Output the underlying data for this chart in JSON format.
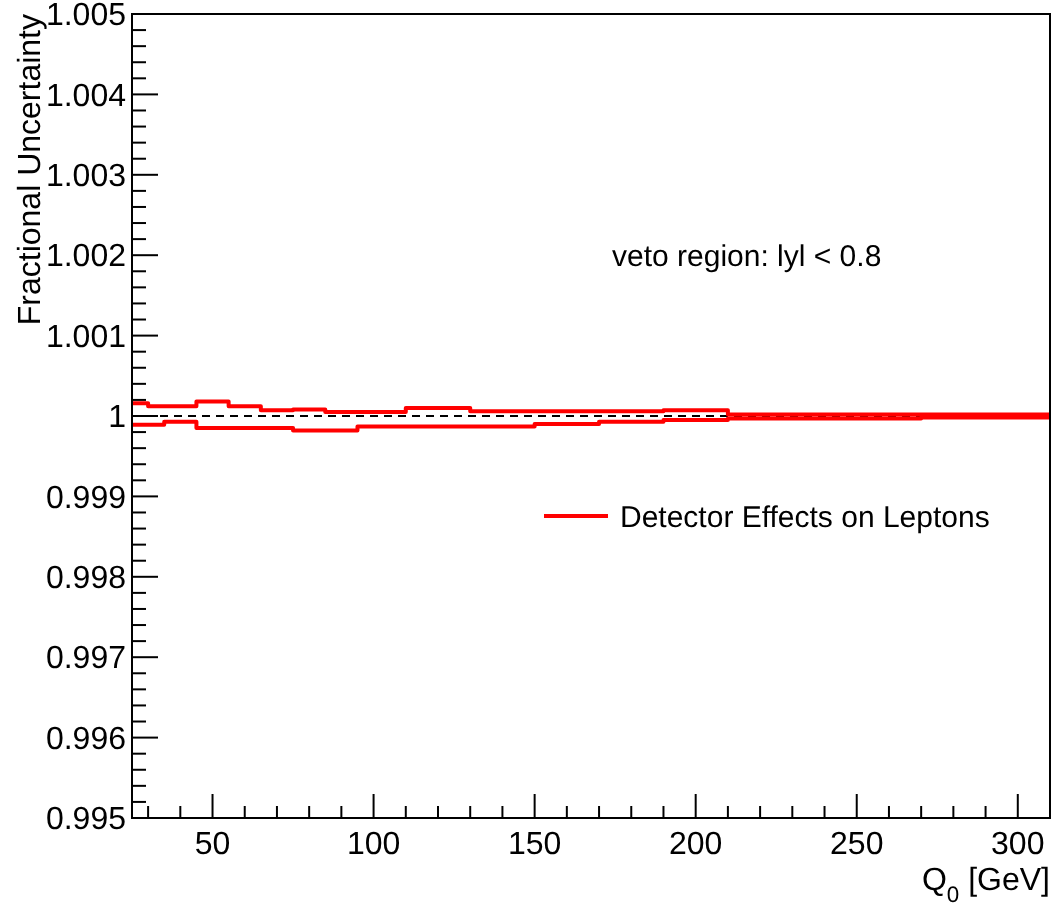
{
  "chart_data": {
    "type": "step",
    "xlabel": "Q$_{0}$ [GeV]",
    "ylabel": "Fractional Uncertainty",
    "xlim": [
      25,
      310
    ],
    "ylim": [
      0.995,
      1.005
    ],
    "xticks": [
      {
        "value": 30,
        "label": null
      },
      {
        "value": 40,
        "label": null
      },
      50,
      {
        "value": 60,
        "label": null
      },
      {
        "value": 70,
        "label": null
      },
      {
        "value": 80,
        "label": null
      },
      {
        "value": 90,
        "label": null
      },
      100,
      {
        "value": 110,
        "label": null
      },
      {
        "value": 120,
        "label": null
      },
      {
        "value": 130,
        "label": null
      },
      {
        "value": 140,
        "label": null
      },
      150,
      {
        "value": 160,
        "label": null
      },
      {
        "value": 170,
        "label": null
      },
      {
        "value": 180,
        "label": null
      },
      {
        "value": 190,
        "label": null
      },
      200,
      {
        "value": 210,
        "label": null
      },
      {
        "value": 220,
        "label": null
      },
      {
        "value": 230,
        "label": null
      },
      {
        "value": 240,
        "label": null
      },
      250,
      {
        "value": 260,
        "label": null
      },
      {
        "value": 270,
        "label": null
      },
      {
        "value": 280,
        "label": null
      },
      {
        "value": 290,
        "label": null
      },
      300
    ],
    "yticks": [
      0.995,
      {
        "value": 0.9952,
        "label": null
      },
      {
        "value": 0.9954,
        "label": null
      },
      {
        "value": 0.9956,
        "label": null
      },
      {
        "value": 0.9958,
        "label": null
      },
      0.996,
      {
        "value": 0.9962,
        "label": null
      },
      {
        "value": 0.9964,
        "label": null
      },
      {
        "value": 0.9966,
        "label": null
      },
      {
        "value": 0.9968,
        "label": null
      },
      0.997,
      {
        "value": 0.9972,
        "label": null
      },
      {
        "value": 0.9974,
        "label": null
      },
      {
        "value": 0.9976,
        "label": null
      },
      {
        "value": 0.9978,
        "label": null
      },
      0.998,
      {
        "value": 0.9982,
        "label": null
      },
      {
        "value": 0.9984,
        "label": null
      },
      {
        "value": 0.9986,
        "label": null
      },
      {
        "value": 0.9988,
        "label": null
      },
      0.999,
      {
        "value": 0.9992,
        "label": null
      },
      {
        "value": 0.9994,
        "label": null
      },
      {
        "value": 0.9996,
        "label": null
      },
      {
        "value": 0.9998,
        "label": null
      },
      1,
      {
        "value": 1.0002,
        "label": null
      },
      {
        "value": 1.0004,
        "label": null
      },
      {
        "value": 1.0006,
        "label": null
      },
      {
        "value": 1.0008,
        "label": null
      },
      1.001,
      {
        "value": 1.0012,
        "label": null
      },
      {
        "value": 1.0014,
        "label": null
      },
      {
        "value": 1.0016,
        "label": null
      },
      {
        "value": 1.0018,
        "label": null
      },
      1.002,
      {
        "value": 1.0022,
        "label": null
      },
      {
        "value": 1.0024,
        "label": null
      },
      {
        "value": 1.0026,
        "label": null
      },
      {
        "value": 1.0028,
        "label": null
      },
      1.003,
      {
        "value": 1.0032,
        "label": null
      },
      {
        "value": 1.0034,
        "label": null
      },
      {
        "value": 1.0036,
        "label": null
      },
      {
        "value": 1.0038,
        "label": null
      },
      1.004,
      {
        "value": 1.0042,
        "label": null
      },
      {
        "value": 1.0044,
        "label": null
      },
      {
        "value": 1.0046,
        "label": null
      },
      {
        "value": 1.0048,
        "label": null
      },
      1.005
    ],
    "series": [
      {
        "name": "Detector Effects on Leptons",
        "color": "#ff0000",
        "x": [
          25,
          30,
          45,
          55,
          65,
          75,
          85,
          110,
          130,
          190,
          210,
          310
        ],
        "values": [
          1.00016,
          1.00012,
          1.00018,
          1.00012,
          1.00007,
          1.00008,
          1.00005,
          1.0001,
          1.00006,
          1.00007,
          1.00002,
          1.00002
        ]
      },
      {
        "color": "#ff0000",
        "x": [
          25,
          35,
          45,
          75,
          95,
          150,
          170,
          190,
          210,
          270,
          310
        ],
        "values": [
          0.99989,
          0.99993,
          0.99985,
          0.99982,
          0.99987,
          0.9999,
          0.99993,
          0.99995,
          0.99997,
          0.99998,
          0.99998
        ]
      }
    ],
    "ref_lines": [
      {
        "axis": "y",
        "value": 1,
        "color": "#000000",
        "line_style": "dashed"
      }
    ],
    "annotations": [
      "veto region: lyl < 0.8"
    ],
    "legend": "right",
    "grid": false,
    "marker": "none"
  }
}
